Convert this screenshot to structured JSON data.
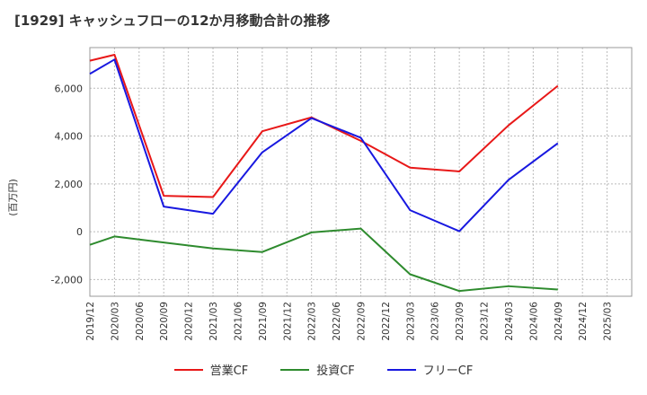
{
  "chart_data": {
    "type": "line",
    "title": "[1929]  キャッシュフローの12か月移動合計の推移",
    "xlabel": "",
    "ylabel": "(百万円)",
    "x_ticks": [
      "2019/12",
      "2020/03",
      "2020/06",
      "2020/09",
      "2020/12",
      "2021/03",
      "2021/06",
      "2021/09",
      "2021/12",
      "2022/03",
      "2022/06",
      "2022/09",
      "2022/12",
      "2023/03",
      "2023/06",
      "2023/09",
      "2023/12",
      "2024/03",
      "2024/06",
      "2024/09",
      "2024/12",
      "2025/03"
    ],
    "y_ticks": [
      "6,000",
      "4,000",
      "2,000",
      "0",
      "-2,000"
    ],
    "y_tick_values": [
      6000,
      4000,
      2000,
      0,
      -2000
    ],
    "ylim": [
      -2700,
      7700
    ],
    "grid": true,
    "legend_position": "bottom",
    "series": [
      {
        "name": "営業CF",
        "color": "#e81818",
        "x": [
          "2019/12",
          "2020/03",
          "2020/09",
          "2021/03",
          "2021/09",
          "2022/03",
          "2022/09",
          "2023/03",
          "2023/09",
          "2024/03",
          "2024/09"
        ],
        "values": [
          7150,
          7400,
          1500,
          1450,
          4200,
          4780,
          3800,
          2680,
          2520,
          4450,
          6100
        ]
      },
      {
        "name": "投資CF",
        "color": "#2e8b2e",
        "x": [
          "2019/12",
          "2020/03",
          "2020/09",
          "2021/03",
          "2021/09",
          "2022/03",
          "2022/09",
          "2023/03",
          "2023/09",
          "2024/03",
          "2024/09"
        ],
        "values": [
          -550,
          -200,
          -450,
          -700,
          -850,
          -30,
          130,
          -1780,
          -2480,
          -2280,
          -2420
        ]
      },
      {
        "name": "フリーCF",
        "color": "#1818e0",
        "x": [
          "2019/12",
          "2020/03",
          "2020/09",
          "2021/03",
          "2021/09",
          "2022/03",
          "2022/09",
          "2023/03",
          "2023/09",
          "2024/03",
          "2024/09"
        ],
        "values": [
          6600,
          7200,
          1050,
          750,
          3320,
          4750,
          3930,
          900,
          20,
          2170,
          3700
        ]
      }
    ]
  }
}
